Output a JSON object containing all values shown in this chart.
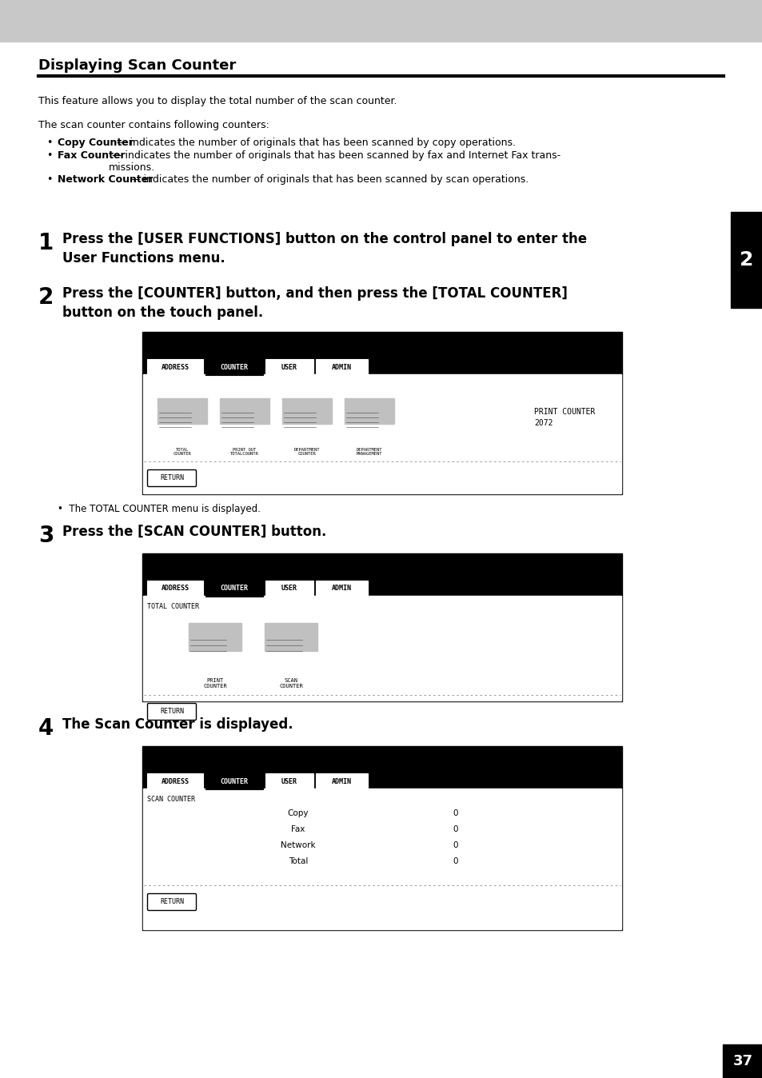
{
  "page_bg": "#ffffff",
  "header_bg": "#c8c8c8",
  "title": "Displaying Scan Counter",
  "body_text1": "This feature allows you to display the total number of the scan counter.",
  "body_text2": "The scan counter contains following counters:",
  "bullet1_bold": "Copy Counter",
  "bullet1_rest": " — indicates the number of originals that has been scanned by copy operations.",
  "bullet2_bold": "Fax Counter",
  "bullet2_rest": " — indicates the number of originals that has been scanned by fax and Internet Fax trans-\nmissions.",
  "bullet3_bold": "Network Counter",
  "bullet3_rest": " — indicates the number of originals that has been scanned by scan operations.",
  "step1_text": "Press the [USER FUNCTIONS] button on the control panel to enter the\nUser Functions menu.",
  "step2_text": "Press the [COUNTER] button, and then press the [TOTAL COUNTER]\nbutton on the touch panel.",
  "step3_text": "Press the [SCAN COUNTER] button.",
  "step4_text": "The Scan Counter is displayed.",
  "note1": "•  The TOTAL COUNTER menu is displayed.",
  "sidebar_num": "2",
  "page_num": "37",
  "tabs": [
    "ADDRESS",
    "COUNTER",
    "USER",
    "ADMIN"
  ],
  "icon1_labels": [
    "TOTAL\nCOUNTER",
    "PRINT OUT\nTOTALCOUNTR",
    "DEPARTMENT\nCOUNTER",
    "DEPARTMENT\nMANAGEMENT"
  ],
  "print_counter_text": "PRINT COUNTER\n2072",
  "icon2_labels": [
    "PRINT\nCOUNTER",
    "SCAN\nCOUNTER"
  ],
  "total_counter_label": "TOTAL COUNTER",
  "scan_counter_label": "SCAN COUNTER",
  "table_rows": [
    [
      "Copy",
      "0"
    ],
    [
      "Fax",
      "0"
    ],
    [
      "Network",
      "0"
    ],
    [
      "Total",
      "0"
    ]
  ],
  "return_label": "RETURN"
}
